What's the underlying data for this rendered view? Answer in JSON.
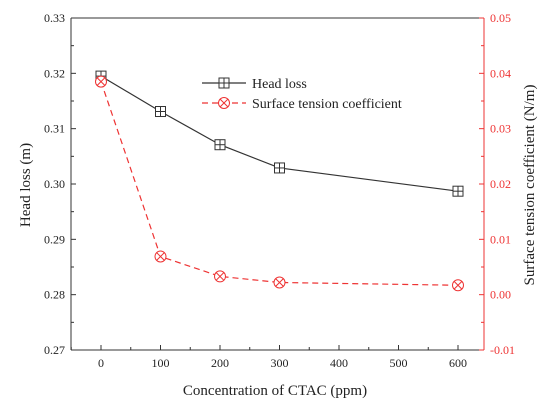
{
  "chart_data": {
    "type": "line",
    "title": "",
    "xlabel": "Concentration of CTAC (ppm)",
    "ylabel_left": "Head loss (m)",
    "ylabel_right": "Surface tension coefficient (N/m)",
    "x_tick_labels": [
      "0",
      "100",
      "200",
      "300",
      "400",
      "500",
      "600"
    ],
    "y_left_tick_labels": [
      "0.27",
      "0.28",
      "0.29",
      "0.30",
      "0.31",
      "0.32",
      "0.33"
    ],
    "y_right_tick_labels": [
      "-0.01",
      "0.00",
      "0.01",
      "0.02",
      "0.03",
      "0.04",
      "0.05"
    ],
    "x_axis_categories": [
      "0",
      "100",
      "200",
      "300",
      "400",
      "500",
      "600"
    ],
    "y_left_lim": [
      0.27,
      0.33
    ],
    "y_right_lim": [
      -0.01,
      0.05
    ],
    "legend_position": "top-center",
    "grid": false,
    "series": [
      {
        "name": "Head loss",
        "axis": "left",
        "color": "#333333",
        "line_style": "solid",
        "marker": "square-plus",
        "x": [
          "0",
          "100",
          "200",
          "300",
          "600"
        ],
        "values": [
          0.3195,
          0.3131,
          0.3071,
          0.3029,
          0.2987
        ]
      },
      {
        "name": "Surface tension coefficient",
        "axis": "right",
        "color": "#ee3333",
        "line_style": "dashed",
        "marker": "circle-cross",
        "x": [
          "0",
          "100",
          "200",
          "300",
          "600"
        ],
        "values": [
          0.0385,
          0.0069,
          0.0033,
          0.0022,
          0.0017
        ]
      }
    ]
  }
}
